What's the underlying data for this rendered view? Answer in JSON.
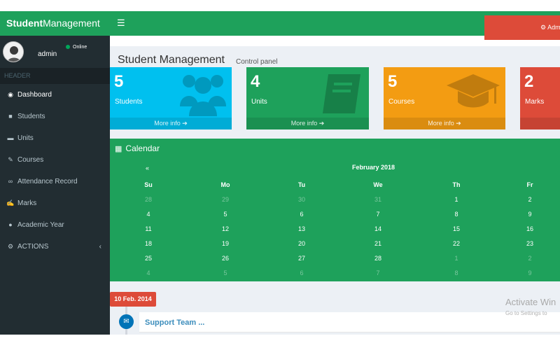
{
  "header": {
    "logo_bold": "Student",
    "logo_rest": "Management",
    "menu_icon": "bars-icon",
    "admin_button": "⚙ Admin"
  },
  "sidebar": {
    "user": {
      "name": "admin",
      "status": "Online",
      "status_color": "#00a65a"
    },
    "header_label": "HEADER",
    "items": [
      {
        "label": "Dashboard",
        "icon": "dashboard-icon",
        "glyph": "◉"
      },
      {
        "label": "Students",
        "icon": "users-icon",
        "glyph": "👥"
      },
      {
        "label": "Units",
        "icon": "book-icon",
        "glyph": "▬"
      },
      {
        "label": "Courses",
        "icon": "pencil-icon",
        "glyph": "✎"
      },
      {
        "label": "Attendance Record",
        "icon": "link-icon",
        "glyph": "∞"
      },
      {
        "label": "Marks",
        "icon": "edit-icon",
        "glyph": "✍"
      },
      {
        "label": "Academic Year",
        "icon": "user-icon",
        "glyph": "●"
      },
      {
        "label": "ACTIONS",
        "icon": "cogs-icon",
        "glyph": "⚙",
        "caret": "‹"
      }
    ]
  },
  "page": {
    "title": "Student Management",
    "subtitle": "Control panel"
  },
  "stats": [
    {
      "value": "5",
      "label": "Students",
      "footer": "More info ➔",
      "color": "#00c0ef",
      "icon": "users-icon"
    },
    {
      "value": "4",
      "label": "Units",
      "footer": "More info ➔",
      "color": "#1ea15b",
      "icon": "book-icon"
    },
    {
      "value": "5",
      "label": "Courses",
      "footer": "More info ➔",
      "color": "#f39c12",
      "icon": "graduation-cap-icon"
    },
    {
      "value": "2",
      "label": "Marks",
      "footer": "",
      "color": "#dd4b39",
      "icon": ""
    }
  ],
  "calendar": {
    "title": "Calendar",
    "prev": "«",
    "month": "February 2018",
    "weekdays": [
      "Su",
      "Mo",
      "Tu",
      "We",
      "Th",
      "Fr"
    ],
    "weeks": [
      [
        "28",
        "29",
        "30",
        "31",
        "1",
        "2"
      ],
      [
        "4",
        "5",
        "6",
        "7",
        "8",
        "9"
      ],
      [
        "11",
        "12",
        "13",
        "14",
        "15",
        "16"
      ],
      [
        "18",
        "19",
        "20",
        "21",
        "22",
        "23"
      ],
      [
        "25",
        "26",
        "27",
        "28",
        "1",
        "2"
      ],
      [
        "4",
        "5",
        "6",
        "7",
        "8",
        "9"
      ]
    ]
  },
  "timeline": {
    "date": "10 Feb. 2014",
    "item_header": "Support Team ...",
    "icon": "envelope-icon"
  },
  "watermark": {
    "line1": "Activate Win",
    "line2": "Go to Settings to"
  }
}
